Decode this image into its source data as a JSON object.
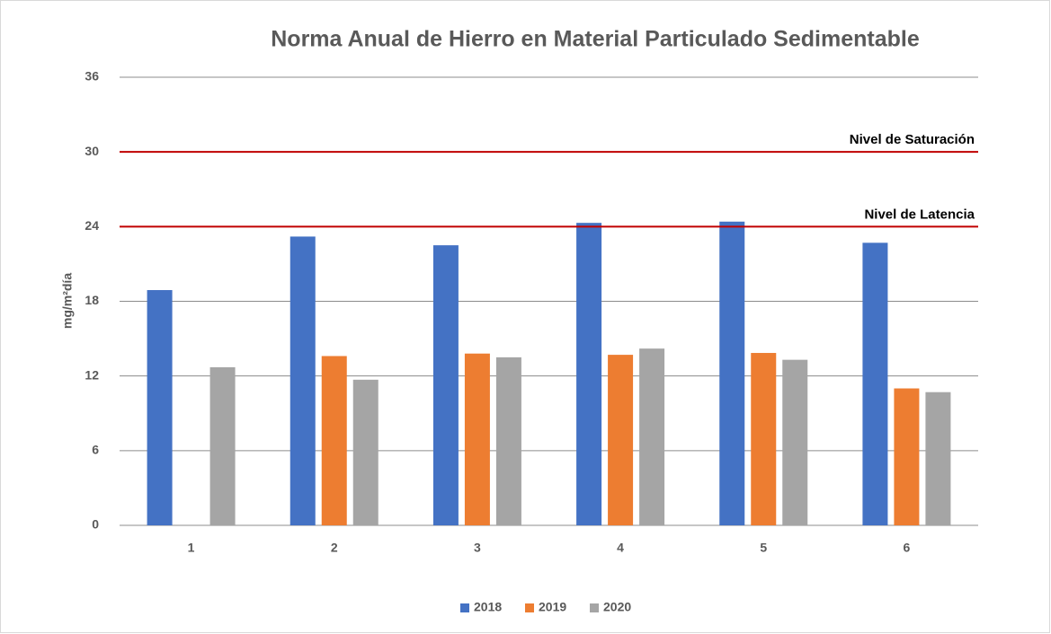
{
  "chart_data": {
    "type": "bar",
    "title": "Norma Anual de Hierro en Material Particulado Sedimentable",
    "y_label": "mg/m²día",
    "categories": [
      "1",
      "2",
      "3",
      "4",
      "5",
      "6"
    ],
    "series": [
      {
        "name": "2018",
        "color": "#4472c4",
        "values": [
          18.9,
          23.2,
          22.5,
          24.3,
          24.4,
          22.7
        ]
      },
      {
        "name": "2019",
        "color": "#ed7d31",
        "values": [
          null,
          13.6,
          13.8,
          13.7,
          13.85,
          11.0
        ]
      },
      {
        "name": "2020",
        "color": "#a5a5a5",
        "values": [
          12.7,
          11.7,
          13.5,
          14.2,
          13.3,
          10.7
        ]
      }
    ],
    "reference_lines": [
      {
        "value": 30,
        "label": "Nivel de Saturación",
        "color": "#c00000"
      },
      {
        "value": 24,
        "label": "Nivel de Latencia",
        "color": "#c00000"
      }
    ],
    "ylim": [
      0,
      36
    ],
    "yticks": [
      0,
      6,
      12,
      18,
      24,
      30,
      36
    ],
    "grid": true,
    "legend": "bottom"
  }
}
